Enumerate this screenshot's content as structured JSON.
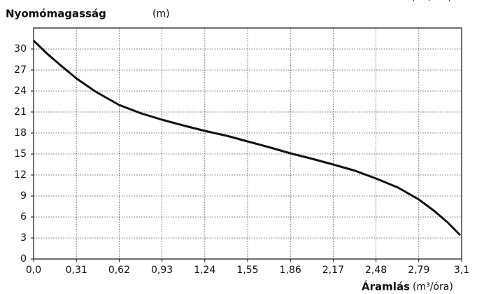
{
  "chart_data": {
    "type": "line",
    "y_label": "Nyomómagasság",
    "y_unit": "(m)",
    "x_label": "Áramlás",
    "x_unit": "(m³/óra)",
    "grid": true,
    "xlim": [
      0,
      3.1
    ],
    "ylim": [
      0,
      33
    ],
    "xticks": [
      {
        "value": 0,
        "label": "0,0"
      },
      {
        "value": 0.31,
        "label": "0,31"
      },
      {
        "value": 0.62,
        "label": "0,62"
      },
      {
        "value": 0.93,
        "label": "0,93"
      },
      {
        "value": 1.24,
        "label": "1,24"
      },
      {
        "value": 1.55,
        "label": "1,55"
      },
      {
        "value": 1.86,
        "label": "1,86"
      },
      {
        "value": 2.17,
        "label": "2,17"
      },
      {
        "value": 2.48,
        "label": "2,48"
      },
      {
        "value": 2.79,
        "label": "2,79"
      },
      {
        "value": 3.1,
        "label": "3,1"
      }
    ],
    "yticks": [
      0,
      3,
      6,
      9,
      12,
      15,
      18,
      21,
      24,
      27,
      30
    ],
    "series": [
      {
        "color": "#111111",
        "x": [
          0,
          0.1,
          0.2,
          0.31,
          0.45,
          0.62,
          0.78,
          0.93,
          1.1,
          1.24,
          1.4,
          1.55,
          1.7,
          1.86,
          2.02,
          2.17,
          2.33,
          2.48,
          2.64,
          2.79,
          2.9,
          3.0,
          3.09
        ],
        "values": [
          31.2,
          29.3,
          27.6,
          25.8,
          23.9,
          22.0,
          20.8,
          19.9,
          19.0,
          18.3,
          17.6,
          16.8,
          16.0,
          15.1,
          14.3,
          13.5,
          12.6,
          11.5,
          10.2,
          8.5,
          6.9,
          5.2,
          3.4
        ]
      }
    ]
  }
}
